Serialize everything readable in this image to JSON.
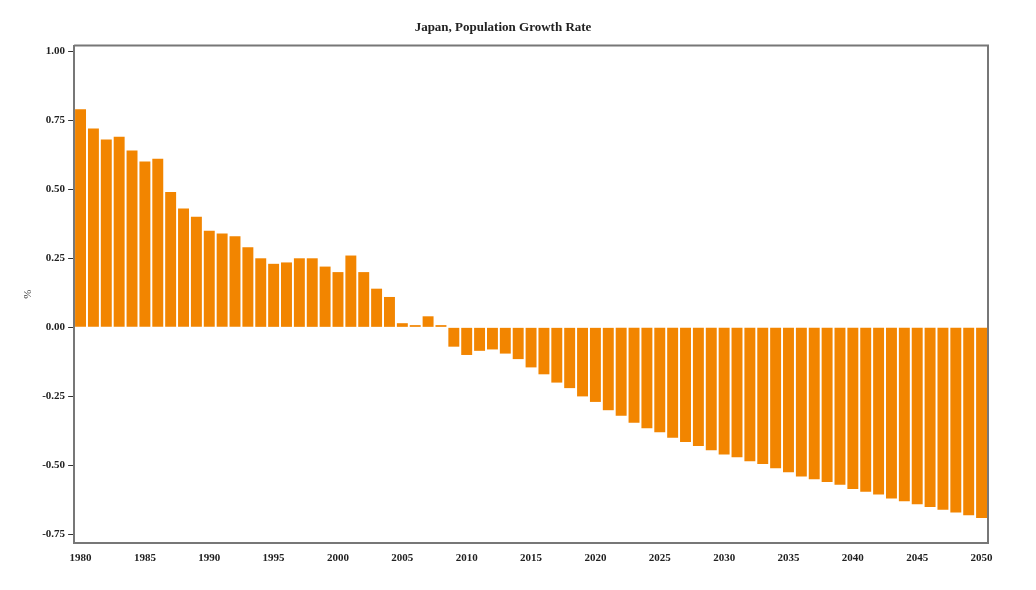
{
  "chart_data": {
    "type": "bar",
    "title": "Japan, Population Growth Rate",
    "ylabel": "%",
    "categories": [
      "1980",
      null,
      null,
      null,
      null,
      "1985",
      null,
      null,
      null,
      null,
      "1990",
      null,
      null,
      null,
      null,
      "1995",
      null,
      null,
      null,
      null,
      "2000",
      null,
      null,
      null,
      null,
      "2005",
      null,
      null,
      null,
      null,
      "2010",
      null,
      null,
      null,
      null,
      "2015",
      null,
      null,
      null,
      null,
      "2020",
      null,
      null,
      null,
      null,
      "2025",
      null,
      null,
      null,
      null,
      "2030",
      null,
      null,
      null,
      null,
      "2035",
      null,
      null,
      null,
      null,
      "2040",
      null,
      null,
      null,
      null,
      "2045",
      null,
      null,
      null,
      null,
      "2050"
    ],
    "values": [
      0.79,
      0.72,
      0.68,
      0.69,
      0.64,
      0.6,
      0.61,
      0.49,
      0.43,
      0.4,
      0.35,
      0.34,
      0.33,
      0.29,
      0.25,
      0.23,
      0.235,
      0.25,
      0.25,
      0.22,
      0.2,
      0.26,
      0.2,
      0.14,
      0.11,
      0.015,
      0.008,
      0.04,
      0.008,
      -0.07,
      -0.1,
      -0.085,
      -0.08,
      -0.095,
      -0.115,
      -0.145,
      -0.17,
      -0.2,
      -0.22,
      -0.25,
      -0.27,
      -0.3,
      -0.32,
      -0.345,
      -0.365,
      -0.38,
      -0.4,
      -0.415,
      -0.43,
      -0.445,
      -0.46,
      -0.47,
      -0.485,
      -0.495,
      -0.51,
      -0.525,
      -0.54,
      -0.55,
      -0.56,
      -0.57,
      -0.585,
      -0.595,
      -0.605,
      -0.62,
      -0.63,
      -0.64,
      -0.65,
      -0.66,
      -0.67,
      -0.68,
      -0.69
    ],
    "color": "#f28500",
    "ylim": [
      -0.78,
      1.02
    ],
    "yticks": [
      {
        "value": -0.75,
        "label": "-0.75"
      },
      {
        "value": -0.5,
        "label": "-0.50"
      },
      {
        "value": -0.25,
        "label": "-0.25"
      },
      {
        "value": 0,
        "label": "0.00"
      },
      {
        "value": 0.25,
        "label": "0.25"
      },
      {
        "value": 0.5,
        "label": "0.50"
      },
      {
        "value": 0.75,
        "label": "0.75"
      },
      {
        "value": 1,
        "label": "1.00"
      }
    ],
    "grid": false,
    "legend": false
  }
}
